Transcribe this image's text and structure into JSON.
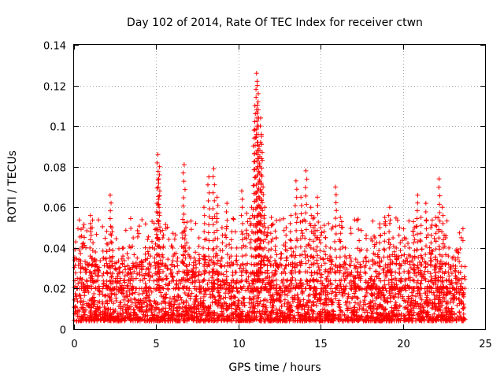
{
  "chart_data": {
    "type": "scatter",
    "title": "Day 102 of 2014, Rate Of TEC Index for receiver ctwn",
    "xlabel": "GPS time / hours",
    "ylabel": "ROTI / TECUs",
    "xlim": [
      0,
      25
    ],
    "ylim": [
      0,
      0.14
    ],
    "xticks": [
      0,
      5,
      10,
      15,
      20,
      25
    ],
    "xtick_labels": [
      "0",
      "5",
      "10",
      "15",
      "20",
      "25"
    ],
    "yticks": [
      0,
      0.02,
      0.04,
      0.06,
      0.08,
      0.1,
      0.12,
      0.14
    ],
    "ytick_labels": [
      "0",
      "0.02",
      "0.04",
      "0.06",
      "0.08",
      "0.1",
      "0.12",
      "0.14"
    ],
    "grid": true,
    "marker": "plus",
    "color": "#ff0000",
    "series": [
      {
        "name": "ROTI",
        "x": [
          0.1,
          0.2,
          0.4,
          0.6,
          0.8,
          1.0,
          1.1,
          1.3,
          1.5,
          1.8,
          2.0,
          2.2,
          2.3,
          2.5,
          2.8,
          3.0,
          3.3,
          3.6,
          3.8,
          4.0,
          4.3,
          4.6,
          4.9,
          5.05,
          5.1,
          5.15,
          5.2,
          5.4,
          5.7,
          6.0,
          6.3,
          6.6,
          6.7,
          6.8,
          7.0,
          7.3,
          7.6,
          7.9,
          8.2,
          8.5,
          8.7,
          9.0,
          9.3,
          9.6,
          9.9,
          10.2,
          10.5,
          10.8,
          10.95,
          11.0,
          11.1,
          11.15,
          11.2,
          11.25,
          11.3,
          11.35,
          11.4,
          11.5,
          11.6,
          11.8,
          12.0,
          12.3,
          12.6,
          12.9,
          13.2,
          13.5,
          13.8,
          14.1,
          14.4,
          14.6,
          14.8,
          15.0,
          15.3,
          15.6,
          15.9,
          16.2,
          16.5,
          16.8,
          17.1,
          17.4,
          17.7,
          18.0,
          18.3,
          18.6,
          18.9,
          19.2,
          19.4,
          19.6,
          19.8,
          20.1,
          20.4,
          20.7,
          20.9,
          21.1,
          21.4,
          21.7,
          22.0,
          22.2,
          22.4,
          22.6,
          22.8,
          23.0,
          23.2,
          23.4,
          23.6
        ],
        "y": [
          0.043,
          0.025,
          0.03,
          0.02,
          0.032,
          0.056,
          0.05,
          0.038,
          0.028,
          0.035,
          0.042,
          0.066,
          0.05,
          0.03,
          0.025,
          0.04,
          0.035,
          0.045,
          0.03,
          0.032,
          0.025,
          0.04,
          0.035,
          0.062,
          0.086,
          0.074,
          0.08,
          0.045,
          0.03,
          0.04,
          0.035,
          0.045,
          0.081,
          0.05,
          0.04,
          0.035,
          0.045,
          0.06,
          0.075,
          0.079,
          0.065,
          0.05,
          0.062,
          0.048,
          0.04,
          0.068,
          0.057,
          0.06,
          0.098,
          0.11,
          0.126,
          0.12,
          0.108,
          0.09,
          0.085,
          0.104,
          0.095,
          0.07,
          0.06,
          0.05,
          0.055,
          0.045,
          0.035,
          0.05,
          0.056,
          0.073,
          0.065,
          0.078,
          0.06,
          0.055,
          0.065,
          0.05,
          0.045,
          0.04,
          0.07,
          0.055,
          0.04,
          0.035,
          0.03,
          0.032,
          0.035,
          0.03,
          0.045,
          0.05,
          0.055,
          0.06,
          0.045,
          0.04,
          0.05,
          0.045,
          0.04,
          0.05,
          0.066,
          0.055,
          0.062,
          0.05,
          0.055,
          0.074,
          0.06,
          0.045,
          0.04,
          0.035,
          0.03,
          0.028,
          0.025
        ],
        "dense_band": {
          "x_range": [
            0,
            23.8
          ],
          "y_range": [
            0.004,
            0.035
          ],
          "typical": 0.015
        }
      }
    ]
  }
}
